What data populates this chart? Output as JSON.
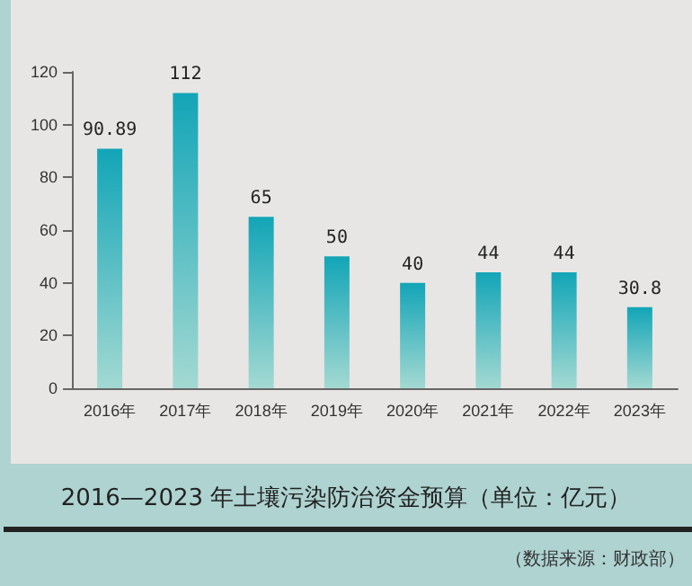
{
  "chart_data": {
    "type": "bar",
    "title": "2016—2023 年土壤污染防治资金预算（单位：亿元）",
    "annotations": [
      "（数据来源：财政部）"
    ],
    "categories": [
      "2016年",
      "2017年",
      "2018年",
      "2019年",
      "2020年",
      "2021年",
      "2022年",
      "2023年"
    ],
    "values": [
      90.89,
      112,
      65,
      50,
      40,
      44,
      44,
      30.8
    ],
    "color": "#12a5b7",
    "ylim": [
      0,
      120
    ],
    "yticks": [
      0,
      20,
      40,
      60,
      80,
      100,
      120
    ],
    "grid": false,
    "data_labels": true
  }
}
